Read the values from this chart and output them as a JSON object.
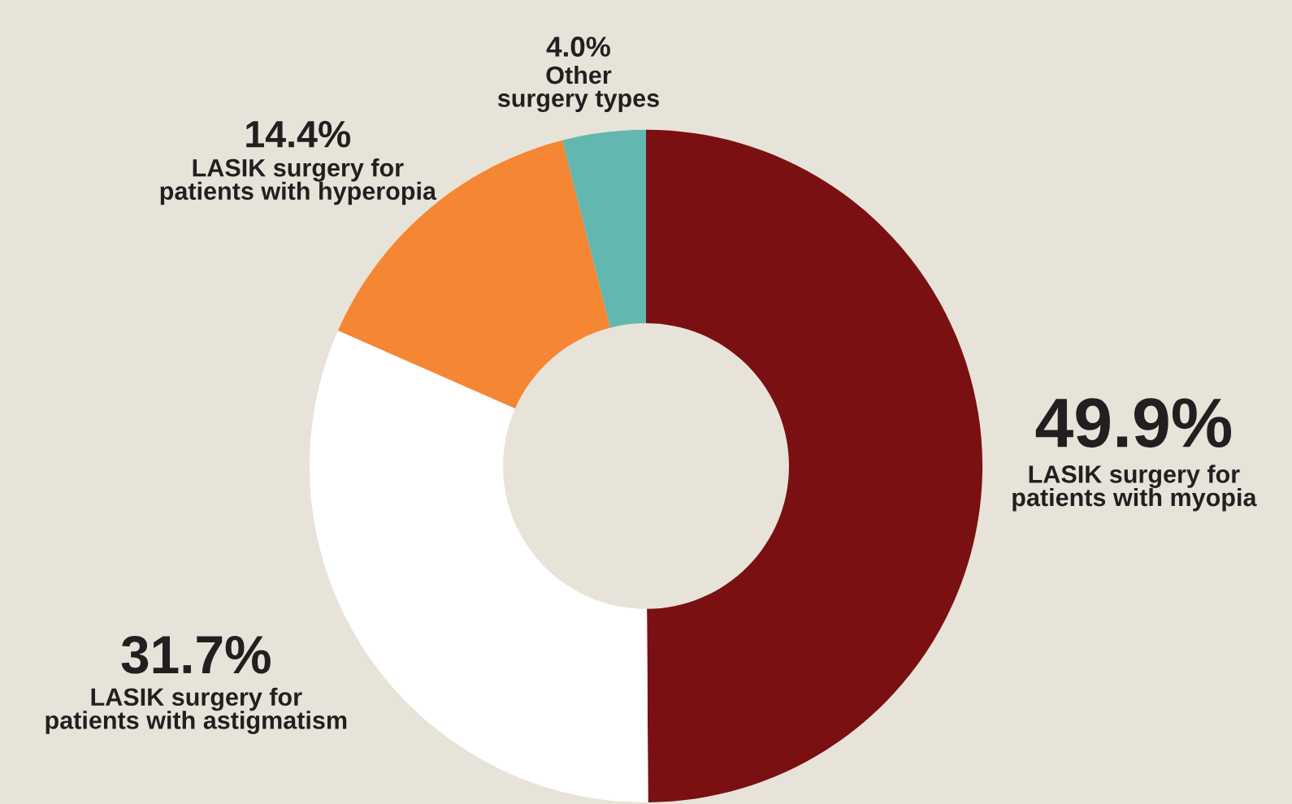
{
  "chart_data": {
    "type": "donut",
    "categories": [
      "LASIK surgery for patients with myopia",
      "LASIK surgery for patients with astigmatism",
      "LASIK surgery for patients with hyperopia",
      "Other surgery types"
    ],
    "values": [
      49.9,
      31.7,
      14.4,
      4.0
    ],
    "value_labels": [
      "49.9%",
      "31.7%",
      "14.4%",
      "4.0%"
    ],
    "colors": [
      "#7a1012",
      "#ffffff",
      "#f58634",
      "#62b8b0"
    ],
    "legend": false
  }
}
